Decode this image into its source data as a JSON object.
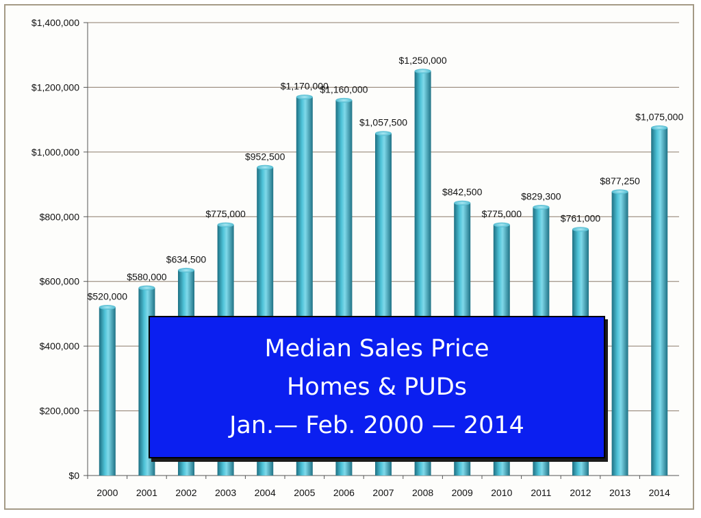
{
  "chart_data": {
    "type": "bar",
    "categories": [
      "2000",
      "2001",
      "2002",
      "2003",
      "2004",
      "2005",
      "2006",
      "2007",
      "2008",
      "2009",
      "2010",
      "2011",
      "2012",
      "2013",
      "2014"
    ],
    "values": [
      520000,
      580000,
      634500,
      775000,
      952500,
      1170000,
      1160000,
      1057500,
      1250000,
      842500,
      775000,
      829300,
      761000,
      877250,
      1075000
    ],
    "data_labels": [
      "$520,000",
      "$580,000",
      "$634,500",
      "$775,000",
      "$952,500",
      "$1,170,000",
      "$1,160,000",
      "$1,057,500",
      "$1,250,000",
      "$842,500",
      "$775,000",
      "$829,300",
      "$761,000",
      "$877,250",
      "$1,075,000"
    ],
    "yticks": [
      0,
      200000,
      400000,
      600000,
      800000,
      1000000,
      1200000,
      1400000
    ],
    "ytick_labels": [
      "$0",
      "$200,000",
      "$400,000",
      "$600,000",
      "$800,000",
      "$1,000,000",
      "$1,200,000",
      "$1,400,000"
    ],
    "ylim": [
      0,
      1400000
    ],
    "title_lines": [
      "Median Sales Price",
      "Homes & PUDs",
      "Jan.— Feb. 2000 — 2014"
    ],
    "xlabel": "",
    "ylabel": "",
    "grid": true,
    "bar_color": "#3aaec6",
    "title_box_color": "#0b1ff0",
    "gridline_color": "#8a7a6a"
  }
}
